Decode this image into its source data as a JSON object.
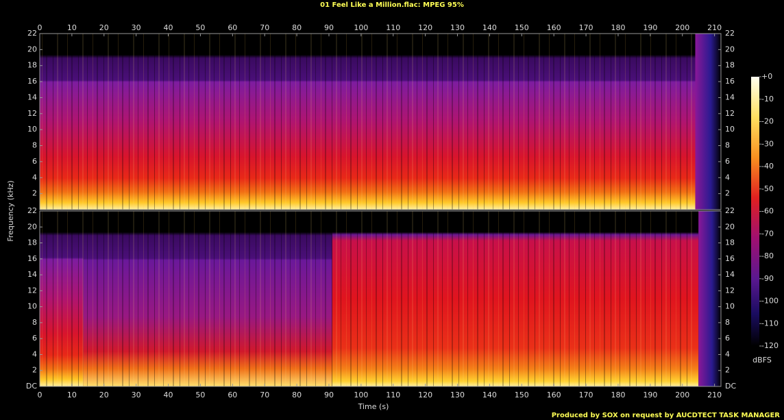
{
  "title": "01 Feel Like a Million.flac: MPEG 95%",
  "x_label": "Time (s)",
  "y_label": "Frequency (kHz)",
  "footer": "Produced by SOX on request by AUCDTECT TASK MANAGER",
  "colorbar": {
    "label": "dBFS",
    "lim": [
      -120,
      0
    ],
    "ticks": [
      {
        "value": 0,
        "label": "+0"
      },
      -10,
      -20,
      -30,
      -40,
      -50,
      -60,
      -70,
      -80,
      -90,
      -100,
      -110,
      -120
    ]
  },
  "chart_data": [
    {
      "type": "spectrogram",
      "xlim": [
        0,
        212
      ],
      "xticks": [
        0,
        10,
        20,
        30,
        40,
        50,
        60,
        70,
        80,
        90,
        100,
        110,
        120,
        130,
        140,
        150,
        160,
        170,
        180,
        190,
        200,
        210
      ],
      "ylim": [
        0,
        22
      ],
      "yticks": [
        2,
        4,
        6,
        8,
        10,
        12,
        14,
        16,
        18,
        20,
        22
      ]
    },
    {
      "type": "spectrogram",
      "xlim": [
        0,
        212
      ],
      "xticks": [
        0,
        10,
        20,
        30,
        40,
        50,
        60,
        70,
        80,
        90,
        100,
        110,
        120,
        130,
        140,
        150,
        160,
        170,
        180,
        190,
        200,
        210
      ],
      "ylim": [
        0,
        22
      ],
      "yticks": [
        {
          "value": 0,
          "label": "DC"
        },
        2,
        4,
        6,
        8,
        10,
        12,
        14,
        16,
        18,
        20,
        22
      ]
    }
  ]
}
